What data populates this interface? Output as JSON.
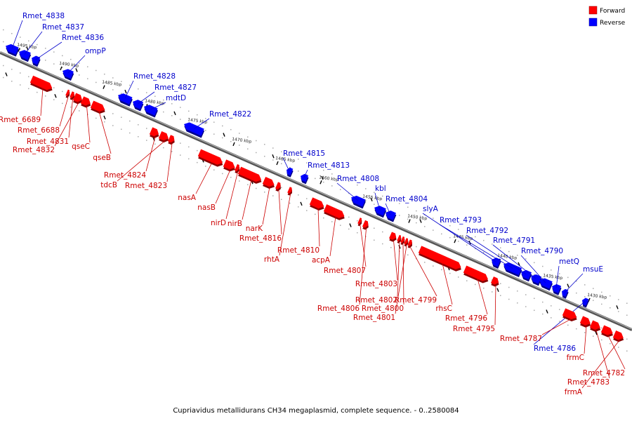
{
  "caption": "Cupriavidus metallidurans CH34 megaplasmid, complete sequence. - 0..2580084",
  "legend": [
    {
      "label": "Forward",
      "color": "#ff0000"
    },
    {
      "label": "Reverse",
      "color": "#0000ff"
    }
  ],
  "colors": {
    "forward": "#ff0000",
    "reverse": "#0000ff",
    "forward_label": "#cc0000",
    "reverse_label": "#0000cc"
  },
  "ticks": [
    "1495 kbp",
    "1490 kbp",
    "1485 kbp",
    "1480 kbp",
    "1475 kbp",
    "1470 kbp",
    "1465 kbp",
    "1460 kbp",
    "1455 kbp",
    "1450 kbp",
    "1445 kbp",
    "1440 kbp",
    "1435 kbp",
    "1430 kbp"
  ],
  "reverse_genes": [
    "Rmet_4838",
    "Rmet_4837",
    "Rmet_4836",
    "ompP",
    "Rmet_4828",
    "Rmet_4827",
    "mdtD",
    "Rmet_4822",
    "Rmet_4815",
    "Rmet_4813",
    "Rmet_4808",
    "kbl",
    "Rmet_4804",
    "slyA",
    "Rmet_4793",
    "Rmet_4792",
    "Rmet_4791",
    "Rmet_4790",
    "metQ",
    "msuE",
    "Rmet_4786"
  ],
  "forward_genes": [
    "Rmet_6689",
    "Rmet_6688",
    "Rmet_4831",
    "Rmet_4832",
    "qseC",
    "qseB",
    "Rmet_4824",
    "tdcB",
    "Rmet_4823",
    "nasA",
    "nasB",
    "nirD",
    "nirB",
    "narK",
    "Rmet_4816",
    "rhtA",
    "Rmet_4810",
    "acpA",
    "Rmet_4807",
    "Rmet_4806",
    "Rmet_4803",
    "Rmet_4802",
    "Rmet_4800",
    "Rmet_4801",
    "Rmet_4799",
    "rhsC",
    "Rmet_4796",
    "Rmet_4795",
    "Rmet_4787",
    "frmC",
    "Rmet_4783",
    "Rmet_4782",
    "frmA"
  ]
}
